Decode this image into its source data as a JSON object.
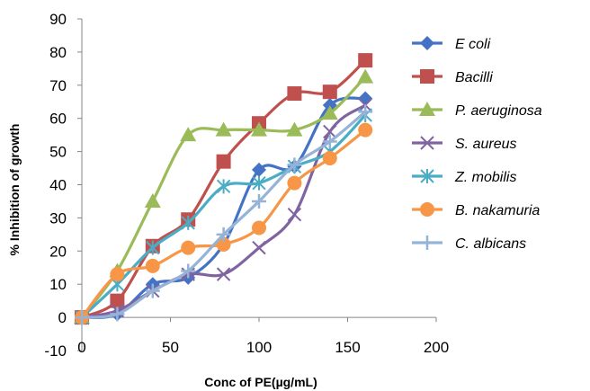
{
  "chart_data": {
    "type": "line",
    "title": "",
    "xlabel": "Conc of PE(µg/mL)",
    "ylabel": "% Inhibition of growth",
    "xlim": [
      0,
      200
    ],
    "ylim": [
      -10,
      90
    ],
    "xticks": [
      0,
      50,
      100,
      150,
      200
    ],
    "yticks": [
      -10,
      0,
      10,
      20,
      30,
      40,
      50,
      60,
      70,
      80,
      90
    ],
    "grid": false,
    "legend_position": "right",
    "x": [
      0,
      20,
      40,
      60,
      80,
      100,
      120,
      140,
      160
    ],
    "series": [
      {
        "name": "E coli",
        "color": "#4472C4",
        "marker": "diamond",
        "values": [
          0,
          1,
          10,
          12,
          22,
          44.5,
          45.5,
          64,
          66
        ]
      },
      {
        "name": "Bacilli",
        "color": "#C0504D",
        "marker": "square",
        "values": [
          0,
          5,
          21.5,
          29.5,
          47,
          58.5,
          67.5,
          68,
          77.5
        ]
      },
      {
        "name": "P. aeruginosa",
        "color": "#9BBB59",
        "marker": "triangle",
        "values": [
          0,
          14,
          35,
          55,
          56.5,
          56.5,
          56.5,
          61.5,
          72.5
        ]
      },
      {
        "name": "S. aureus",
        "color": "#8064A2",
        "marker": "x",
        "values": [
          0,
          2,
          8,
          13,
          13,
          21,
          31,
          56,
          64
        ]
      },
      {
        "name": "Z. mobilis",
        "color": "#4BACC6",
        "marker": "star",
        "values": [
          0,
          10,
          21,
          28.5,
          39.5,
          40.5,
          45.5,
          50,
          61
        ]
      },
      {
        "name": "B. nakamuria",
        "color": "#F79646",
        "marker": "circle",
        "values": [
          0,
          13,
          15.5,
          21,
          22,
          27,
          40.5,
          48,
          56.5
        ]
      },
      {
        "name": "C. albicans",
        "color": "#95B3D7",
        "marker": "plus",
        "values": [
          0,
          1,
          8,
          14,
          25,
          35,
          46,
          53,
          62
        ]
      }
    ]
  }
}
